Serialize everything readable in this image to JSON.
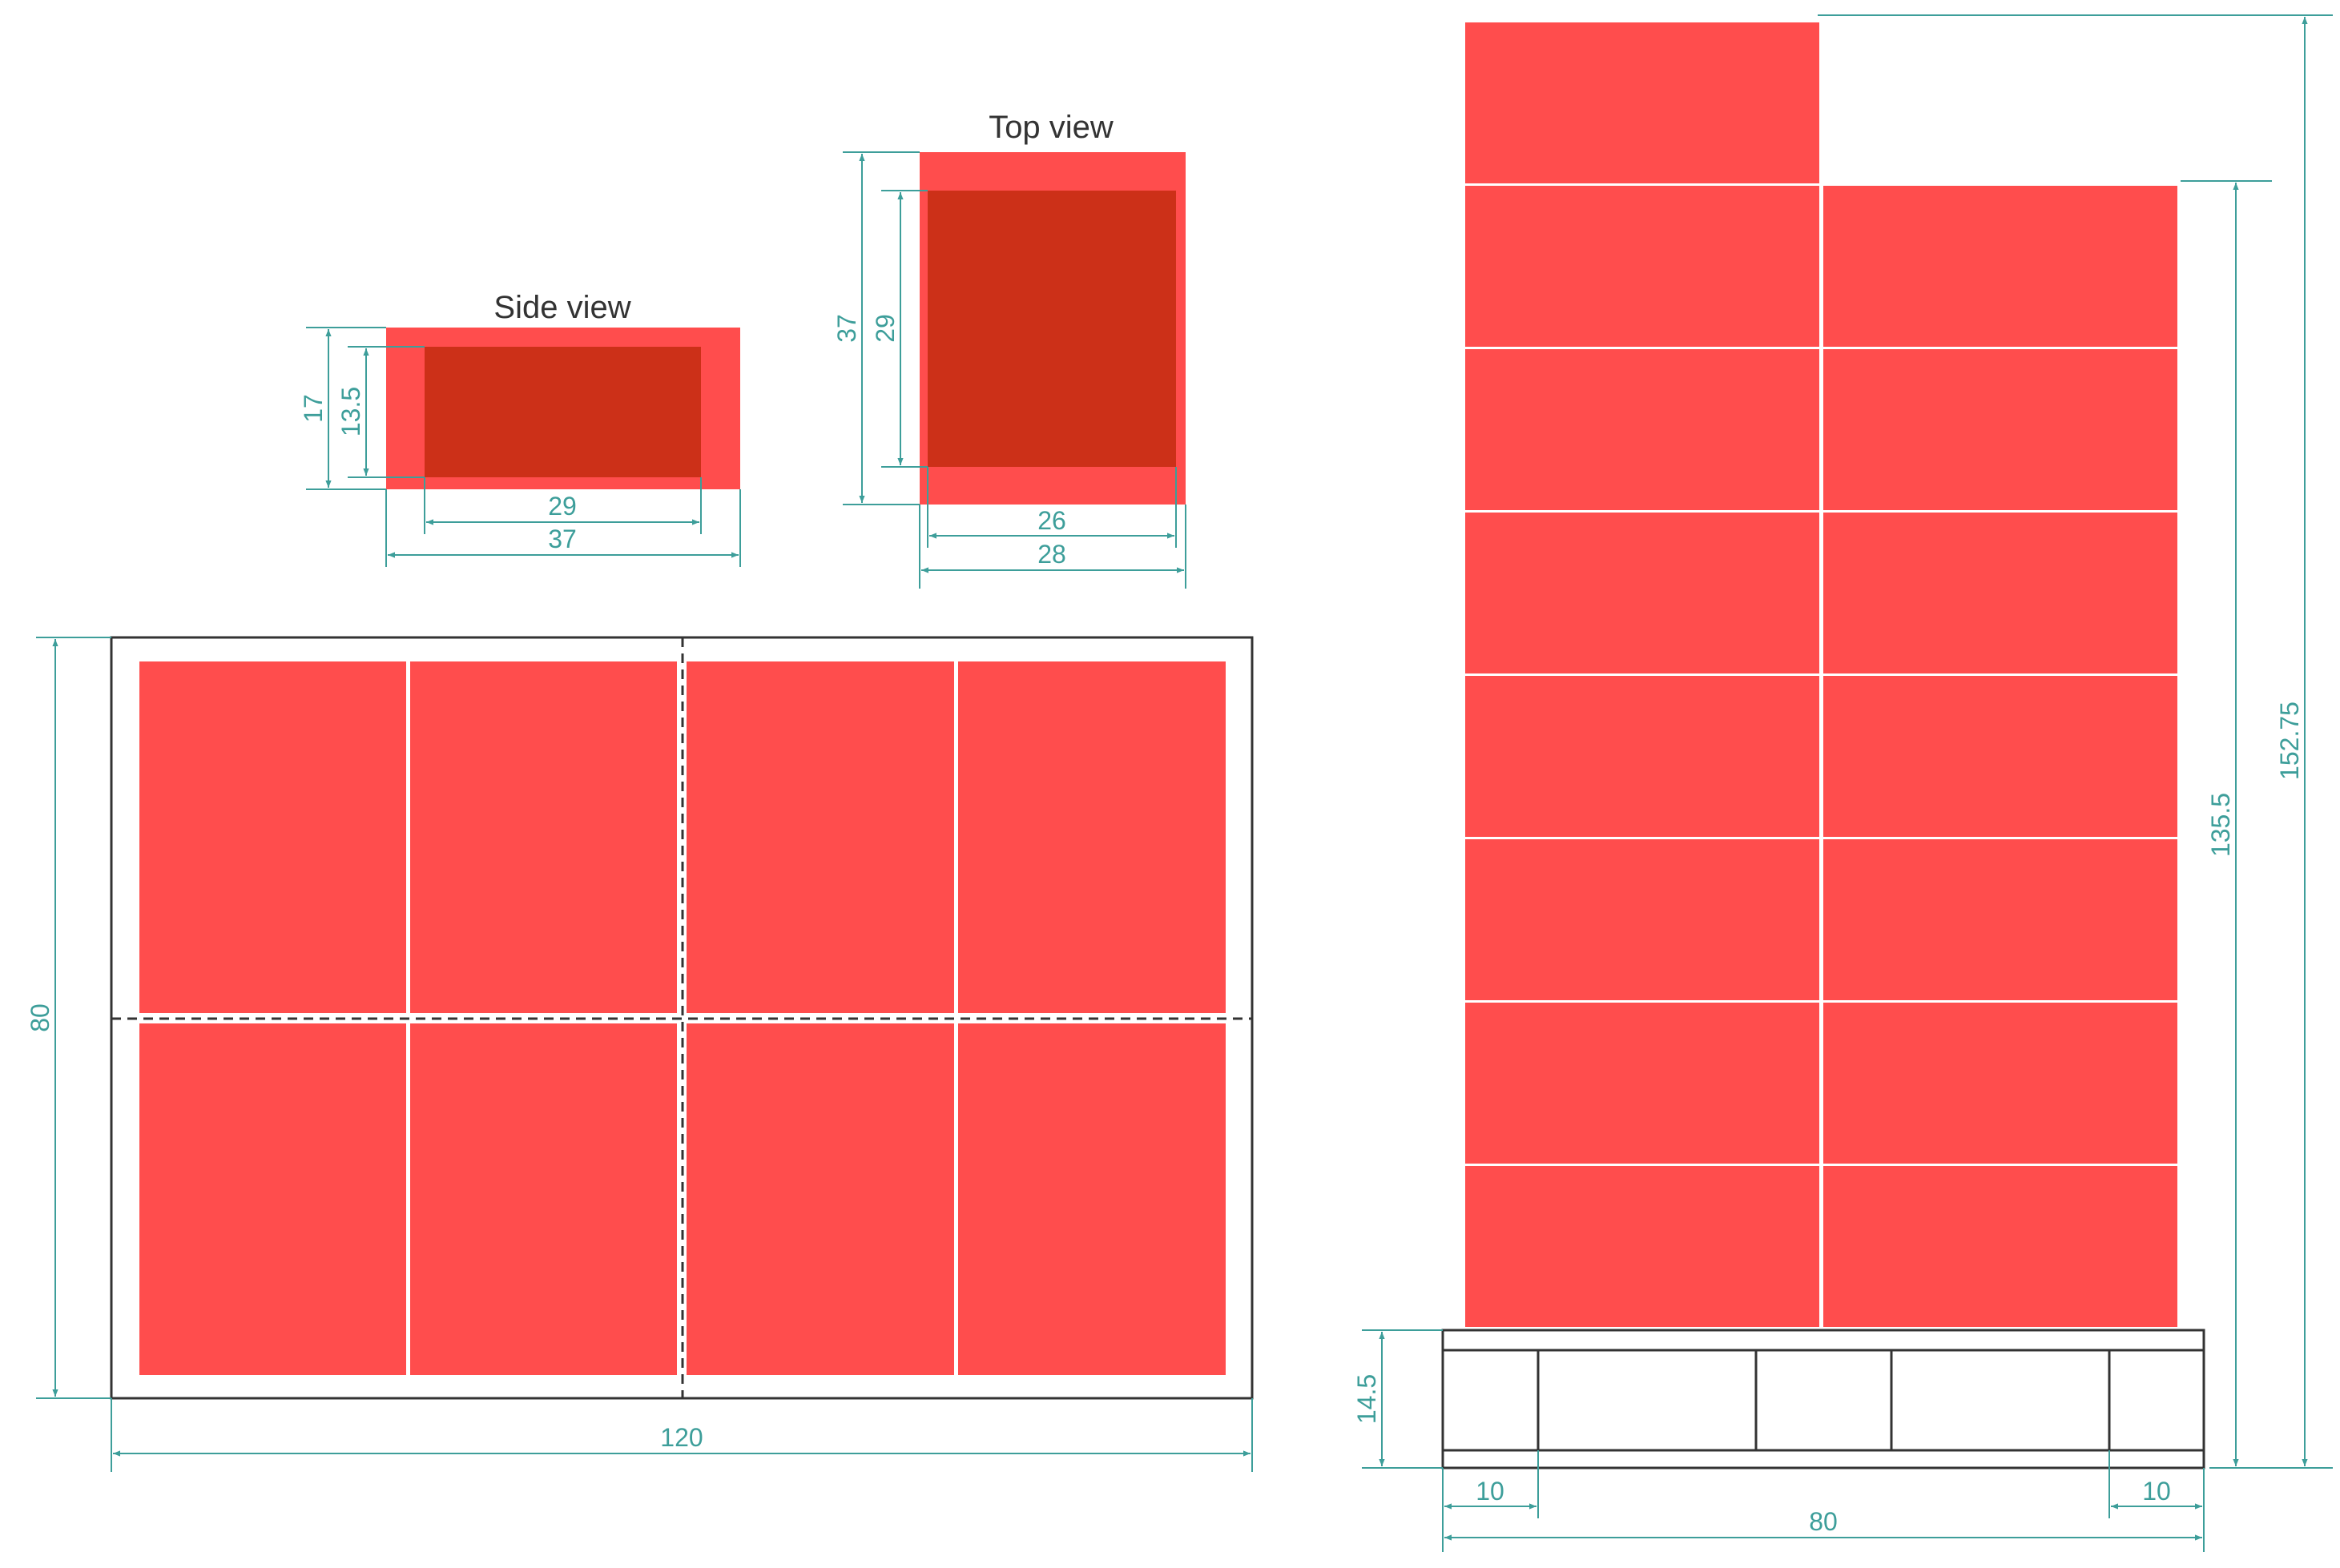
{
  "views": {
    "side_title": "Side view",
    "top_title": "Top view"
  },
  "side_view": {
    "outer_height": "17",
    "inner_height": "13.5",
    "inner_width": "29",
    "outer_width": "37"
  },
  "top_view": {
    "outer_depth": "37",
    "inner_depth": "29",
    "inner_width": "26",
    "outer_width": "28"
  },
  "plan": {
    "depth": "80",
    "length": "120",
    "boxes_per_layer": 8
  },
  "stack": {
    "pallet_height": "14.5",
    "load_height": "135.5",
    "total_height": "152.75",
    "block_left": "10",
    "block_right": "10",
    "pallet_width": "80",
    "layers": 7,
    "extra_top_boxes": 1
  },
  "colors": {
    "box": "#ff4d4d",
    "box_inner": "#cc3018",
    "dimension": "#3d9e9a",
    "outline": "#333333",
    "background": "#ffffff"
  }
}
